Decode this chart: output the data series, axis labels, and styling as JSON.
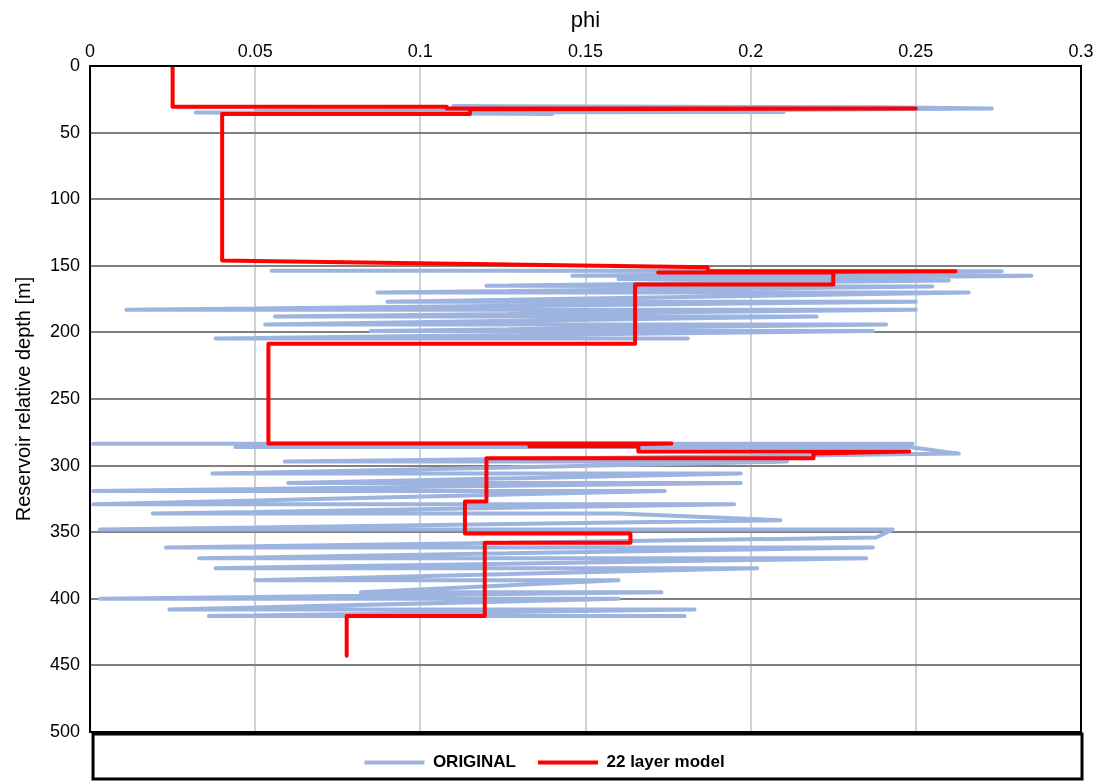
{
  "chart_data": {
    "type": "line",
    "xlabel": "phi",
    "ylabel": "Reservoir relative depth [m]",
    "xlim": [
      0,
      0.3
    ],
    "xticks": [
      0,
      0.05,
      0.1,
      0.15,
      0.2,
      0.25,
      0.3
    ],
    "ylim": [
      500,
      0
    ],
    "yticks": [
      0,
      50,
      100,
      150,
      200,
      250,
      300,
      350,
      400,
      450,
      500
    ],
    "grid": true,
    "legend": "bottom",
    "line_style": "solid",
    "marker": "none",
    "series": [
      {
        "name": "ORIGINAL",
        "color": "#9db4e0",
        "x": [
          0.11,
          0.24,
          0.273,
          0.2,
          0.05,
          0.21,
          0.032,
          0.14,
          null,
          0.055,
          0.276,
          0.146,
          0.285,
          0.16,
          0.26,
          0.12,
          0.255,
          0.087,
          0.266,
          0.09,
          0.25,
          0.011,
          0.25,
          0.056,
          0.22,
          0.053,
          0.241,
          0.085,
          0.237,
          0.038,
          0.181,
          null,
          0.001,
          0.249,
          0.044,
          0.248,
          0.263,
          0.059,
          0.211,
          0.037,
          0.197,
          0.06,
          0.197,
          0.001,
          0.174,
          0.001,
          0.195,
          0.019,
          0.16,
          0.209,
          0.003,
          0.243,
          0.238,
          0.023,
          0.237,
          0.033,
          0.235,
          0.038,
          0.202,
          0.05,
          0.16,
          0.082,
          0.173,
          0.003,
          0.16,
          0.024,
          0.183,
          0.036,
          0.18
        ],
        "values": [
          30,
          31,
          32,
          33,
          34,
          34.5,
          35,
          36,
          null,
          153.7,
          154,
          157.5,
          157.5,
          160,
          161,
          165,
          165.6,
          170,
          170,
          177,
          177,
          183,
          183,
          188,
          188,
          194,
          194,
          199,
          199,
          204.5,
          204.5,
          null,
          283.6,
          283.6,
          286,
          286,
          291,
          297,
          297,
          306,
          306,
          313,
          313,
          319,
          319,
          329,
          329,
          336,
          336,
          341,
          348,
          348,
          354,
          361.5,
          361.5,
          369.6,
          369.6,
          377,
          377,
          386,
          386,
          395,
          395,
          400,
          400,
          408,
          408,
          413,
          413
        ]
      },
      {
        "name": "22 layer model",
        "color": "#ff0000",
        "x": [
          0.025,
          0.025,
          0.108,
          0.108,
          0.25,
          0.115,
          0.115,
          0.04,
          0.04,
          0.187,
          0.187,
          0.262,
          0.172,
          0.225,
          0.225,
          0.165,
          0.165,
          0.054,
          0.054,
          0.176,
          0.133,
          0.166,
          0.166,
          0.248,
          0.219,
          0.219,
          0.12,
          0.12,
          0.1135,
          0.1135,
          0.1636,
          0.1636,
          0.1195,
          0.1195,
          0.0777,
          0.0777
        ],
        "values": [
          0,
          30.5,
          30.5,
          32,
          32,
          32.5,
          36,
          36,
          146,
          151,
          154,
          154,
          155,
          155,
          164,
          164,
          208.6,
          208.6,
          283.5,
          283.5,
          285.5,
          285.5,
          289.5,
          289.5,
          291,
          294.5,
          294.5,
          327,
          327,
          351,
          351,
          358,
          358,
          413,
          413,
          442.7
        ]
      }
    ]
  }
}
